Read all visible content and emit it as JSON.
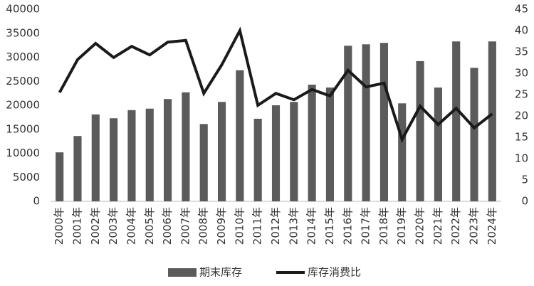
{
  "chart_data": {
    "type": "bar",
    "categories": [
      "2000年",
      "2001年",
      "2002年",
      "2003年",
      "2004年",
      "2005年",
      "2006年",
      "2007年",
      "2008年",
      "2009年",
      "2010年",
      "2011年",
      "2012年",
      "2013年",
      "2014年",
      "2015年",
      "2016年",
      "2017年",
      "2018年",
      "2019年",
      "2020年",
      "2021年",
      "2022年",
      "2023年",
      "2024年"
    ],
    "series": [
      {
        "name": "期末库存",
        "type": "bar",
        "color": "#5b5b5b",
        "values": [
          10200,
          13600,
          18100,
          17300,
          19000,
          19300,
          21300,
          22700,
          16100,
          20700,
          27300,
          17200,
          20000,
          20700,
          24300,
          23700,
          32400,
          32700,
          33000,
          20400,
          29200,
          23700,
          33300,
          27800,
          33300
        ]
      },
      {
        "name": "库存消费比",
        "type": "line",
        "axis": "y2",
        "color": "#1a1a1a",
        "values": [
          25.5,
          33.2,
          37,
          33.7,
          36.3,
          34.3,
          37.3,
          37.7,
          25.3,
          32,
          40,
          22.5,
          25.3,
          23.8,
          26.2,
          24.7,
          30.7,
          26.8,
          27.7,
          14.5,
          22.3,
          18,
          21.8,
          17.2,
          20.5
        ]
      }
    ],
    "ylim": [
      0,
      40000
    ],
    "yticks": [
      0,
      5000,
      10000,
      15000,
      20000,
      25000,
      30000,
      35000,
      40000
    ],
    "y2lim": [
      0,
      45
    ],
    "y2ticks": [
      0,
      5,
      10,
      15,
      20,
      25,
      30,
      35,
      40,
      45
    ],
    "legend": "bottom"
  }
}
